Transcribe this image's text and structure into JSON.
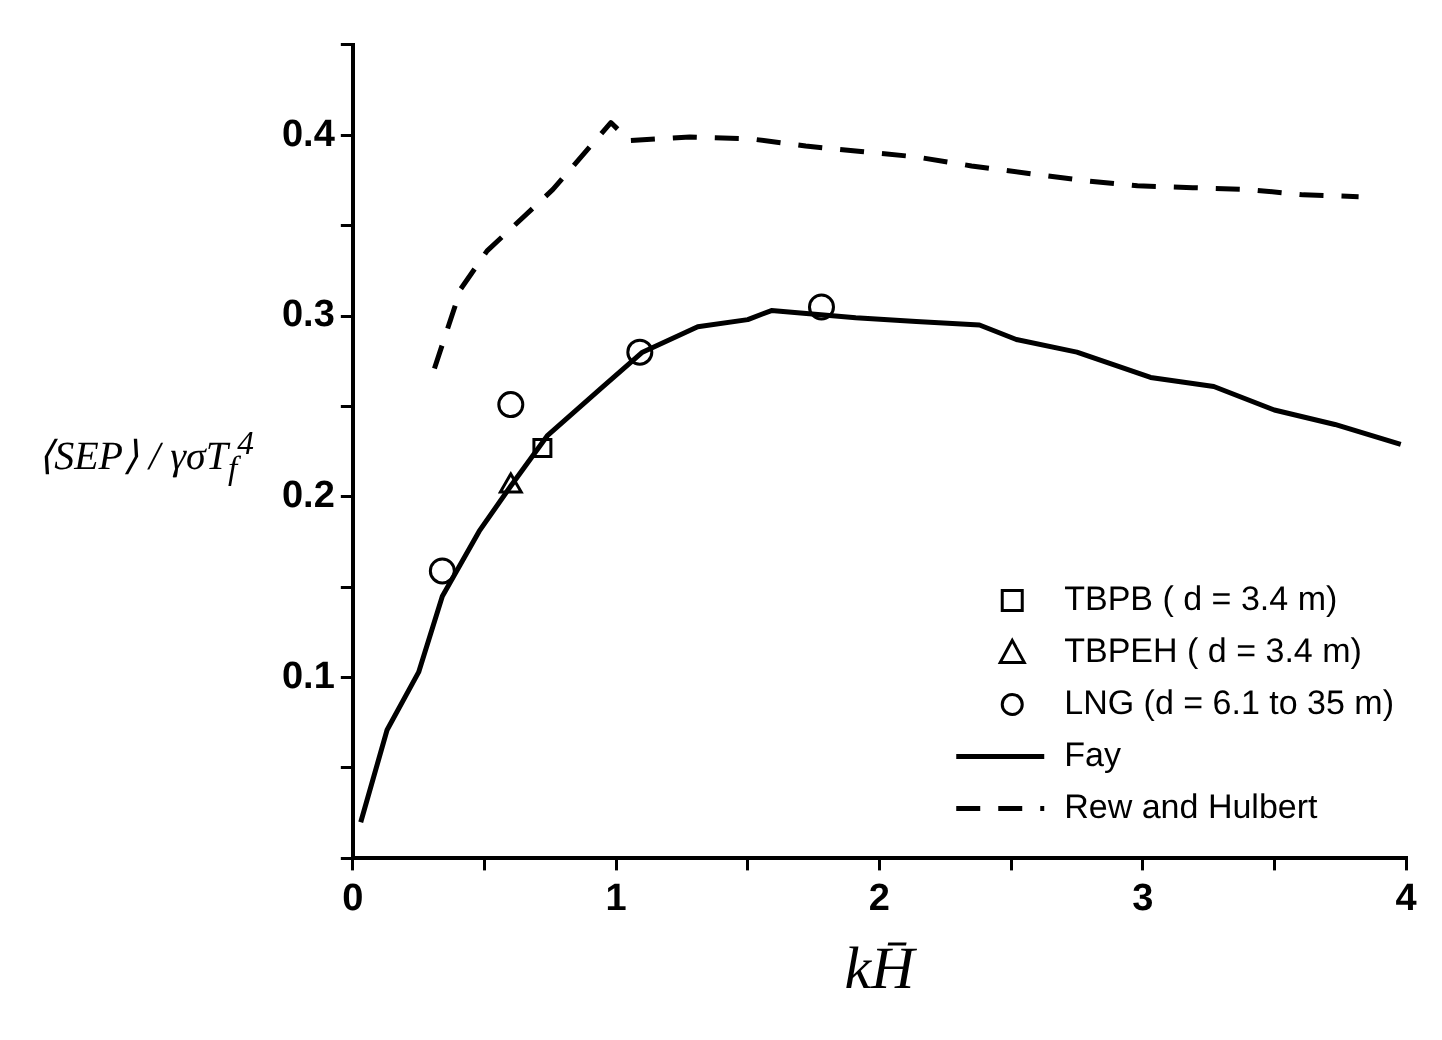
{
  "chart_data": {
    "type": "line",
    "xlabel": "kH̄",
    "ylabel": "⟨SEP⟩ / γσT$_{f}$$^{4}$",
    "xlim": [
      0,
      4
    ],
    "ylim": [
      0,
      0.45
    ],
    "xticks": [
      0,
      {
        "value": 0.5,
        "label": null
      },
      1,
      {
        "value": 1.5,
        "label": null
      },
      2,
      {
        "value": 2.5,
        "label": null
      },
      3,
      {
        "value": 3.5,
        "label": null
      },
      4
    ],
    "yticks": [
      {
        "value": 0,
        "label": null
      },
      {
        "value": 0.05,
        "label": null
      },
      0.1,
      {
        "value": 0.15,
        "label": null
      },
      0.2,
      {
        "value": 0.25,
        "label": null
      },
      0.3,
      {
        "value": 0.35,
        "label": null
      },
      0.4,
      {
        "value": 0.45,
        "label": null
      }
    ],
    "grid": false,
    "legend": "bottom right",
    "series": [
      {
        "name": "TBPB ( d = 3.4 m)",
        "type": "scatter",
        "marker": "square",
        "color": "#000000",
        "x": [
          0.72
        ],
        "values": [
          0.227
        ]
      },
      {
        "name": "TBPEH ( d = 3.4 m)",
        "type": "scatter",
        "marker": "triangle",
        "color": "#000000",
        "x": [
          0.6
        ],
        "values": [
          0.206
        ]
      },
      {
        "name": "LNG (d = 6.1 to 35 m)",
        "type": "scatter",
        "marker": "circle",
        "color": "#000000",
        "x": [
          0.34,
          0.6,
          1.09,
          1.78
        ],
        "values": [
          0.159,
          0.251,
          0.28,
          0.305
        ]
      },
      {
        "name": "Fay",
        "type": "line",
        "line_style": "solid",
        "color": "#000000",
        "x": [
          0.03,
          0.13,
          0.25,
          0.34,
          0.48,
          0.6,
          0.74,
          0.95,
          1.1,
          1.31,
          1.5,
          1.59,
          1.91,
          2.14,
          2.38,
          2.52,
          2.75,
          3.03,
          3.27,
          3.5,
          3.73,
          3.98
        ],
        "values": [
          0.02,
          0.071,
          0.103,
          0.145,
          0.181,
          0.206,
          0.234,
          0.261,
          0.28,
          0.294,
          0.298,
          0.303,
          0.299,
          0.297,
          0.295,
          0.287,
          0.28,
          0.266,
          0.261,
          0.248,
          0.24,
          0.229
        ]
      },
      {
        "name": "Rew and Hulbert",
        "type": "line",
        "line_style": "dashed",
        "color": "#000000",
        "x": [
          0.31,
          0.41,
          0.51,
          0.76,
          0.98,
          1.05,
          1.28,
          1.51,
          1.72,
          1.93,
          2.14,
          2.35,
          2.56,
          2.77,
          2.98,
          3.19,
          3.4,
          3.61,
          3.82
        ],
        "values": [
          0.271,
          0.315,
          0.336,
          0.37,
          0.407,
          0.397,
          0.399,
          0.398,
          0.394,
          0.391,
          0.388,
          0.383,
          0.379,
          0.375,
          0.372,
          0.371,
          0.37,
          0.367,
          0.366
        ]
      }
    ]
  }
}
